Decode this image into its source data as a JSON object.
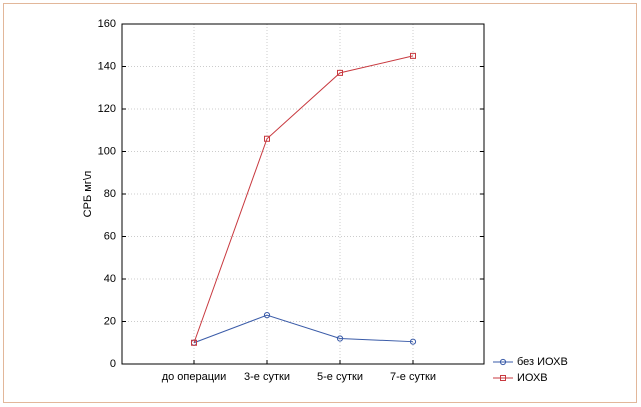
{
  "chart_data": {
    "type": "line",
    "y_label": "СРБ мг\\л",
    "categories": [
      "до операции",
      "3-е сутки",
      "5-е сутки",
      "7-е сутки"
    ],
    "series": [
      {
        "name": "без ИОХВ",
        "color": "#3a5ba8",
        "marker": "circle",
        "values": [
          10,
          23,
          12,
          10.5
        ]
      },
      {
        "name": "ИОХВ",
        "color": "#c8393f",
        "marker": "square",
        "values": [
          10,
          106,
          137,
          145
        ]
      }
    ],
    "ylim": [
      0,
      160
    ],
    "yticks": [
      0,
      20,
      40,
      60,
      80,
      100,
      120,
      140,
      160
    ],
    "grid": true
  }
}
